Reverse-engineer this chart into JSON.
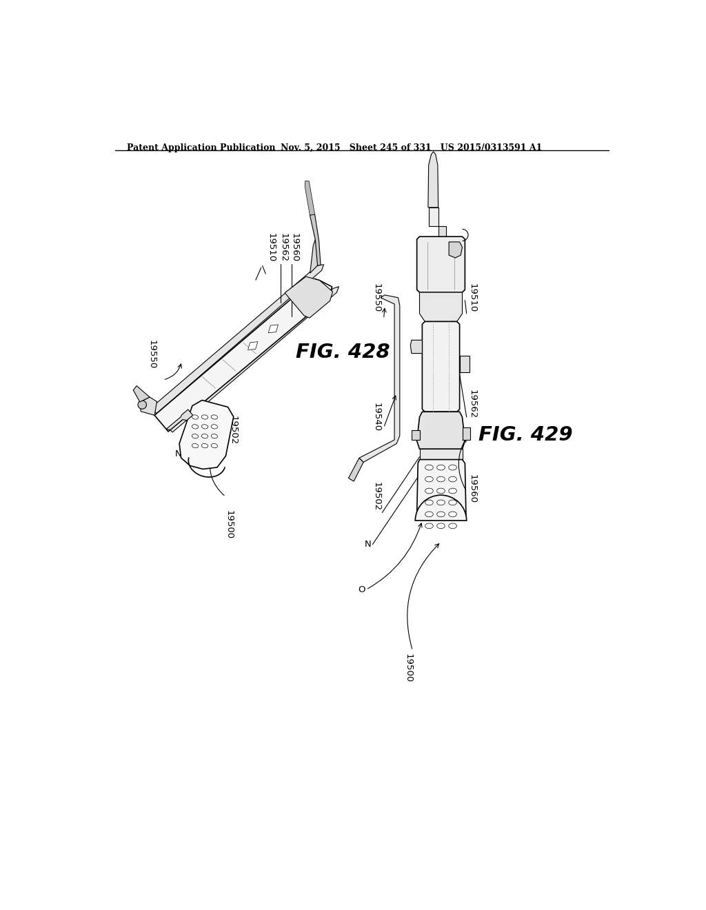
{
  "title_left": "Patent Application Publication",
  "title_center": "Nov. 5, 2015   Sheet 245 of 331   US 2015/0313591 A1",
  "fig_label_428": "FIG. 428",
  "fig_label_429": "FIG. 429",
  "background_color": "#ffffff",
  "text_color": "#000000",
  "label_fontsize": 9.5,
  "header_fontsize": 9.0
}
